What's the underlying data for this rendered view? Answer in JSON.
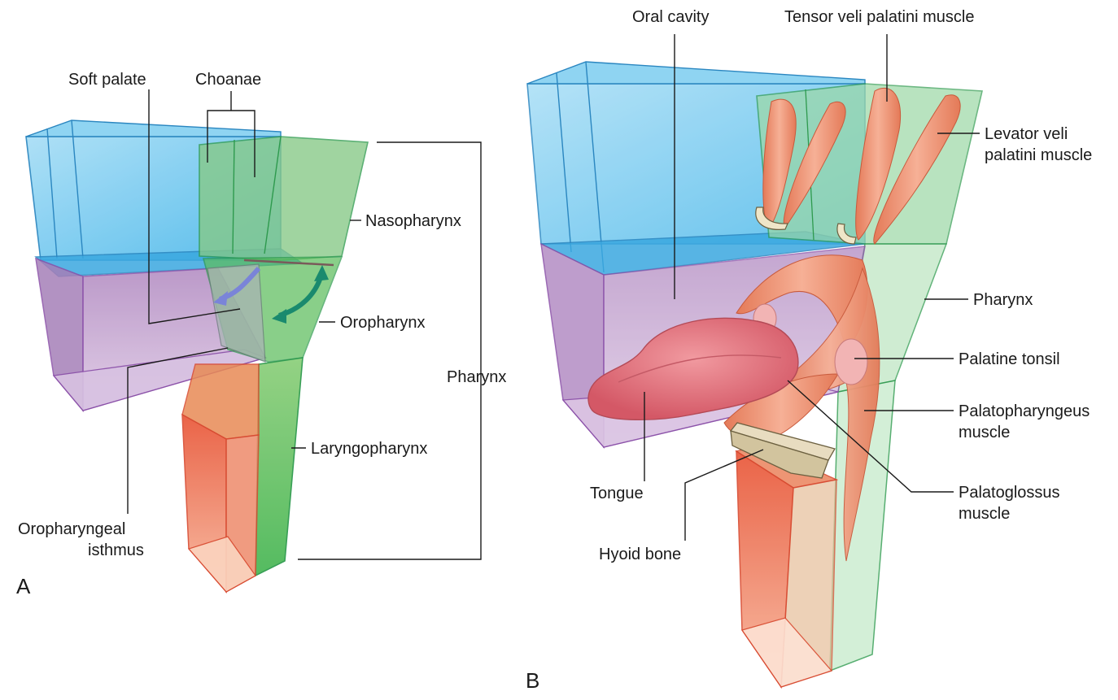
{
  "panel_a": {
    "letter": "A",
    "labels": {
      "soft_palate": "Soft palate",
      "choanae": "Choanae",
      "nasopharynx": "Nasopharynx",
      "oropharynx": "Oropharynx",
      "pharynx": "Pharynx",
      "laryngopharynx": "Laryngopharynx",
      "oropharyngeal_isthmus_line1": "Oropharyngeal",
      "oropharyngeal_isthmus_line2": "isthmus"
    }
  },
  "panel_b": {
    "letter": "B",
    "labels": {
      "oral_cavity": "Oral cavity",
      "tensor_veli_palatini": "Tensor veli palatini muscle",
      "levator_line1": "Levator veli",
      "levator_line2": "palatini muscle",
      "pharynx": "Pharynx",
      "palatine_tonsil": "Palatine tonsil",
      "palatopharyngeus_line1": "Palatopharyngeus",
      "palatopharyngeus_line2": "muscle",
      "tongue": "Tongue",
      "palatoglossus_line1": "Palatoglossus",
      "palatoglossus_line2": "muscle",
      "hyoid_bone": "Hyoid bone"
    }
  },
  "colors": {
    "nasal_blue": "#5cc3ee",
    "oral_purple": "#b98cc6",
    "pharynx_green": "#6cc46c",
    "larynx_red": "#ec5a3c",
    "muscle": "#ee9574",
    "tongue": "#e0707a"
  }
}
